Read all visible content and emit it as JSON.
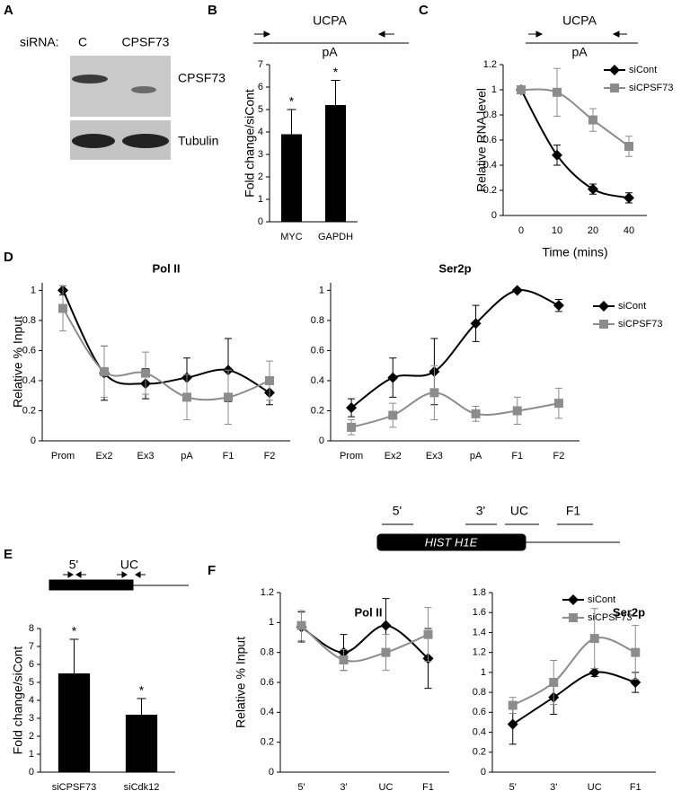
{
  "panel_labels": [
    "A",
    "B",
    "C",
    "D",
    "E",
    "F"
  ],
  "blot": {
    "siRNA_label": "siRNA:",
    "lanes": [
      "C",
      "CPSF73"
    ],
    "bands": [
      "CPSF73",
      "Tubulin"
    ]
  },
  "diagrams": {
    "B": {
      "primer": "UCPA",
      "site": "pA"
    },
    "C": {
      "primer": "UCPA",
      "site": "pA"
    },
    "E": {
      "primers": [
        "5'",
        "UC"
      ]
    },
    "F": {
      "gene": "HIST H1E",
      "primers": [
        "5'",
        "3'",
        "UC",
        "F1"
      ]
    }
  },
  "chart_data": [
    {
      "type": "bar",
      "y_label": "Fold change/siCont",
      "categories": [
        "MYC",
        "GAPDH"
      ],
      "values": [
        3.9,
        5.2
      ],
      "errors": [
        1.1,
        1.1
      ],
      "annotations": [
        "*",
        "*"
      ],
      "color": "#000000",
      "ylim": [
        0,
        7
      ],
      "yticks": [
        0,
        1,
        2,
        3,
        4,
        5,
        6,
        7
      ]
    },
    {
      "type": "line",
      "y_label": "Relative RNA level",
      "x_label": "Time (mins)",
      "categories": [
        "0",
        "10",
        "20",
        "40"
      ],
      "series": [
        {
          "name": "siCont",
          "color": "#000000",
          "marker": "diamond",
          "values": [
            1,
            0.48,
            0.21,
            0.14
          ],
          "errors": [
            0.02,
            0.08,
            0.04,
            0.04
          ]
        },
        {
          "name": "siCPSF73",
          "color": "#8c8c8c",
          "marker": "square",
          "values": [
            1,
            0.98,
            0.76,
            0.55
          ],
          "errors": [
            0.02,
            0.19,
            0.09,
            0.08
          ]
        }
      ],
      "ylim": [
        0,
        1.2
      ],
      "yticks": [
        0,
        0.2,
        0.4,
        0.6,
        0.8,
        1,
        1.2
      ],
      "legend": "right"
    },
    {
      "type": "line",
      "title": "Pol II",
      "y_label": "Relative % Input",
      "categories": [
        "Prom",
        "Ex2",
        "Ex3",
        "pA",
        "F1",
        "F2"
      ],
      "series": [
        {
          "color": "#000000",
          "marker": "diamond",
          "values": [
            1.0,
            0.45,
            0.38,
            0.42,
            0.47,
            0.32
          ],
          "errors": [
            0.03,
            0.18,
            0.1,
            0.13,
            0.21,
            0.08
          ]
        },
        {
          "color": "#8c8c8c",
          "marker": "square",
          "values": [
            0.88,
            0.46,
            0.45,
            0.29,
            0.29,
            0.4
          ],
          "errors": [
            0.15,
            0.17,
            0.14,
            0.15,
            0.18,
            0.13
          ]
        }
      ],
      "ylim": [
        0,
        1.05
      ],
      "yticks": [
        0,
        0.2,
        0.4,
        0.6,
        0.8,
        1
      ]
    },
    {
      "type": "line",
      "title": "Ser2p",
      "categories": [
        "Prom",
        "Ex2",
        "Ex3",
        "pA",
        "F1",
        "F2"
      ],
      "series": [
        {
          "name": "siCont",
          "color": "#000000",
          "marker": "diamond",
          "values": [
            0.22,
            0.42,
            0.46,
            0.78,
            1.0,
            0.9
          ],
          "errors": [
            0.06,
            0.13,
            0.22,
            0.12,
            0.01,
            0.04
          ]
        },
        {
          "name": "siCPSF73",
          "color": "#8c8c8c",
          "marker": "square",
          "values": [
            0.09,
            0.17,
            0.32,
            0.18,
            0.2,
            0.25
          ],
          "errors": [
            0.05,
            0.08,
            0.18,
            0.05,
            0.09,
            0.1
          ]
        }
      ],
      "ylim": [
        0,
        1.05
      ],
      "yticks": [
        0,
        0.2,
        0.4,
        0.6,
        0.8,
        1
      ],
      "legend": "right"
    },
    {
      "type": "bar",
      "y_label": "Fold change/siCont",
      "categories": [
        "siCPSF73",
        "siCdk12"
      ],
      "values": [
        5.5,
        3.2
      ],
      "errors": [
        1.9,
        0.9
      ],
      "annotations": [
        "*",
        "*"
      ],
      "color": "#000000",
      "ylim": [
        0,
        8
      ],
      "yticks": [
        0,
        1,
        2,
        3,
        4,
        5,
        6,
        7,
        8
      ]
    },
    {
      "type": "line",
      "title": "Pol II",
      "y_label": "Relative % Input",
      "categories": [
        "5'",
        "3'",
        "UC",
        "F1"
      ],
      "series": [
        {
          "color": "#000000",
          "marker": "diamond",
          "values": [
            0.97,
            0.8,
            0.98,
            0.76
          ],
          "errors": [
            0.1,
            0.12,
            0.18,
            0.2
          ]
        },
        {
          "color": "#8c8c8c",
          "marker": "square",
          "values": [
            0.98,
            0.75,
            0.8,
            0.92
          ],
          "errors": [
            0.1,
            0.07,
            0.12,
            0.18
          ]
        }
      ],
      "ylim": [
        0,
        1.2
      ],
      "yticks": [
        0,
        0.2,
        0.4,
        0.6,
        0.8,
        1,
        1.2
      ]
    },
    {
      "type": "line",
      "title": "Ser2p",
      "categories": [
        "5'",
        "3'",
        "UC",
        "F1"
      ],
      "series": [
        {
          "name": "siCont",
          "color": "#000000",
          "marker": "diamond",
          "values": [
            0.48,
            0.75,
            1.0,
            0.9
          ],
          "errors": [
            0.2,
            0.17,
            0.04,
            0.1
          ]
        },
        {
          "name": "siCPSF73",
          "color": "#8c8c8c",
          "marker": "square",
          "values": [
            0.67,
            0.9,
            1.34,
            1.2
          ],
          "errors": [
            0.08,
            0.22,
            0.3,
            0.27
          ]
        }
      ],
      "ylim": [
        0,
        1.8
      ],
      "yticks": [
        0,
        0.2,
        0.4,
        0.6,
        0.8,
        1,
        1.2,
        1.4,
        1.6,
        1.8
      ],
      "legend": "top-right"
    }
  ]
}
